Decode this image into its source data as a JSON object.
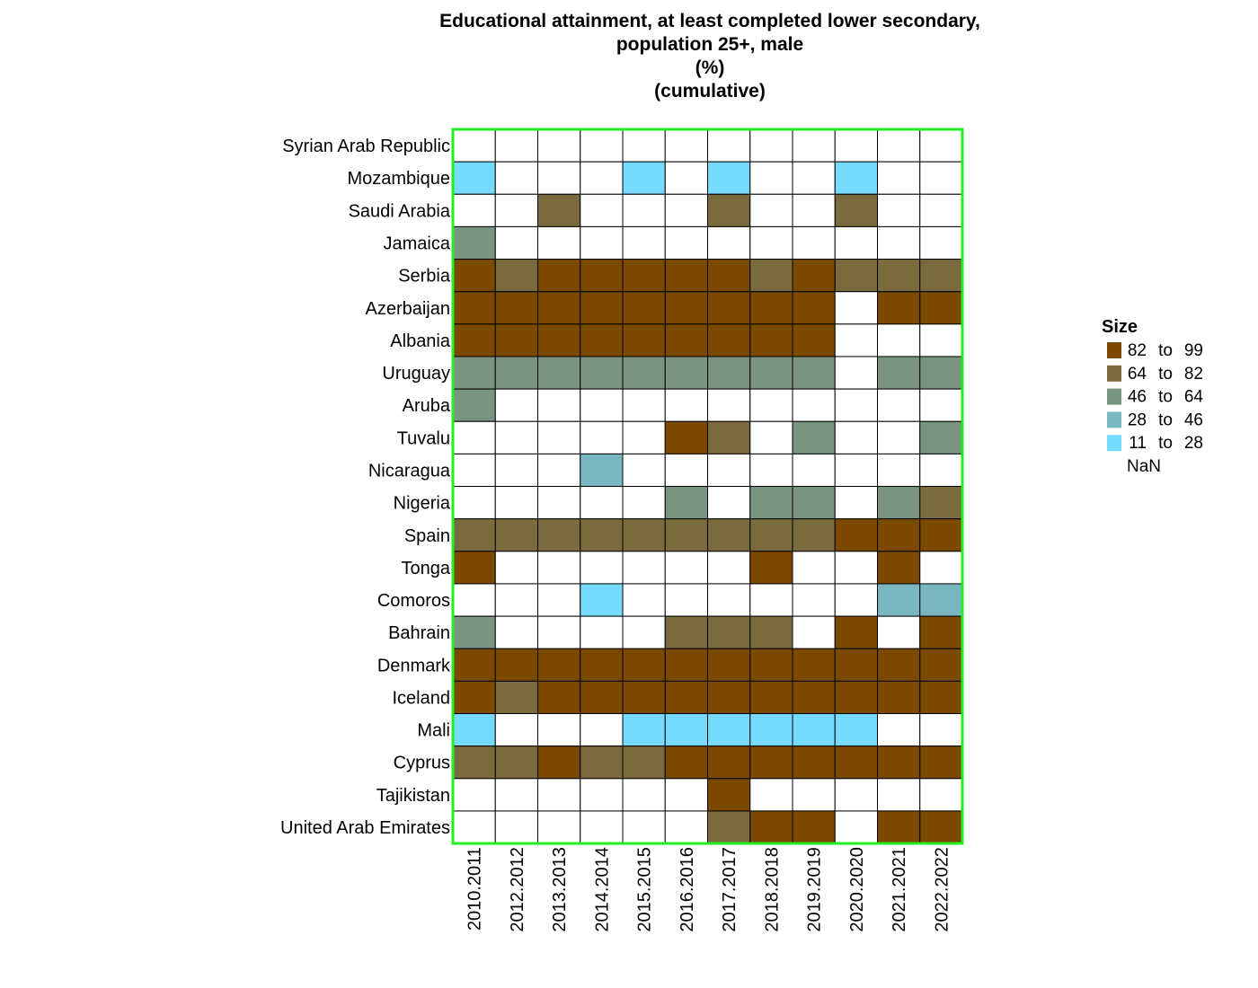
{
  "chart_data": {
    "type": "heatmap",
    "title": [
      "Educational attainment, at least completed lower secondary,",
      "population 25+, male",
      "(%)",
      "(cumulative)"
    ],
    "columns": [
      "2010.2011",
      "2012.2012",
      "2013.2013",
      "2014.2014",
      "2015.2015",
      "2016.2016",
      "2017.2017",
      "2018.2018",
      "2019.2019",
      "2020.2020",
      "2021.2021",
      "2022.2022"
    ],
    "rows": [
      "Syrian Arab Republic",
      "Mozambique",
      "Saudi Arabia",
      "Jamaica",
      "Serbia",
      "Azerbaijan",
      "Albania",
      "Uruguay",
      "Aruba",
      "Tuvalu",
      "Nicaragua",
      "Nigeria",
      "Spain",
      "Tonga",
      "Comoros",
      "Bahrain",
      "Denmark",
      "Iceland",
      "Mali",
      "Cyprus",
      "Tajikistan",
      "United Arab Emirates"
    ],
    "cells": [
      [
        null,
        null,
        null,
        null,
        null,
        null,
        null,
        null,
        null,
        null,
        null,
        null
      ],
      [
        4,
        null,
        null,
        null,
        4,
        null,
        4,
        null,
        null,
        4,
        null,
        null
      ],
      [
        null,
        null,
        1,
        null,
        null,
        null,
        1,
        null,
        null,
        1,
        null,
        null
      ],
      [
        2,
        null,
        null,
        null,
        null,
        null,
        null,
        null,
        null,
        null,
        null,
        null
      ],
      [
        0,
        1,
        0,
        0,
        0,
        0,
        0,
        1,
        0,
        1,
        1,
        1
      ],
      [
        0,
        0,
        0,
        0,
        0,
        0,
        0,
        0,
        0,
        null,
        0,
        0
      ],
      [
        0,
        0,
        0,
        0,
        0,
        0,
        0,
        0,
        0,
        null,
        null,
        null
      ],
      [
        2,
        2,
        2,
        2,
        2,
        2,
        2,
        2,
        2,
        null,
        2,
        2
      ],
      [
        2,
        null,
        null,
        null,
        null,
        null,
        null,
        null,
        null,
        null,
        null,
        null
      ],
      [
        null,
        null,
        null,
        null,
        null,
        0,
        1,
        null,
        2,
        null,
        null,
        2
      ],
      [
        null,
        null,
        null,
        3,
        null,
        null,
        null,
        null,
        null,
        null,
        null,
        null
      ],
      [
        null,
        null,
        null,
        null,
        null,
        2,
        null,
        2,
        2,
        null,
        2,
        1
      ],
      [
        1,
        1,
        1,
        1,
        1,
        1,
        1,
        1,
        1,
        0,
        0,
        0
      ],
      [
        0,
        null,
        null,
        null,
        null,
        null,
        null,
        0,
        null,
        null,
        0,
        null
      ],
      [
        null,
        null,
        null,
        4,
        null,
        null,
        null,
        null,
        null,
        null,
        3,
        3
      ],
      [
        2,
        null,
        null,
        null,
        null,
        1,
        1,
        1,
        null,
        0,
        null,
        0
      ],
      [
        0,
        0,
        0,
        0,
        0,
        0,
        0,
        0,
        0,
        0,
        0,
        0
      ],
      [
        0,
        1,
        0,
        0,
        0,
        0,
        0,
        0,
        0,
        0,
        0,
        0
      ],
      [
        4,
        null,
        null,
        null,
        4,
        4,
        4,
        4,
        4,
        4,
        null,
        null
      ],
      [
        1,
        1,
        0,
        1,
        1,
        0,
        0,
        0,
        0,
        0,
        0,
        0
      ],
      [
        null,
        null,
        null,
        null,
        null,
        null,
        0,
        null,
        null,
        null,
        null,
        null
      ],
      [
        null,
        null,
        null,
        null,
        null,
        null,
        1,
        0,
        0,
        null,
        0,
        0
      ]
    ],
    "legend": {
      "title": "Size",
      "placement": "right",
      "bins": [
        {
          "from": "82",
          "to_word": "to",
          "to": "99",
          "color": "#7b4a00"
        },
        {
          "from": "64",
          "to_word": "to",
          "to": "82",
          "color": "#7a6b3e"
        },
        {
          "from": "46",
          "to_word": "to",
          "to": "64",
          "color": "#7a9482"
        },
        {
          "from": "28",
          "to_word": "to",
          "to": "46",
          "color": "#7ab8c1"
        },
        {
          "from": "11",
          "to_word": "to",
          "to": "28",
          "color": "#77daff"
        }
      ],
      "nan_label": "NaN",
      "nan_color": "#ffffff"
    },
    "frame_color": "#22ee22",
    "grid_color": "#000000"
  }
}
